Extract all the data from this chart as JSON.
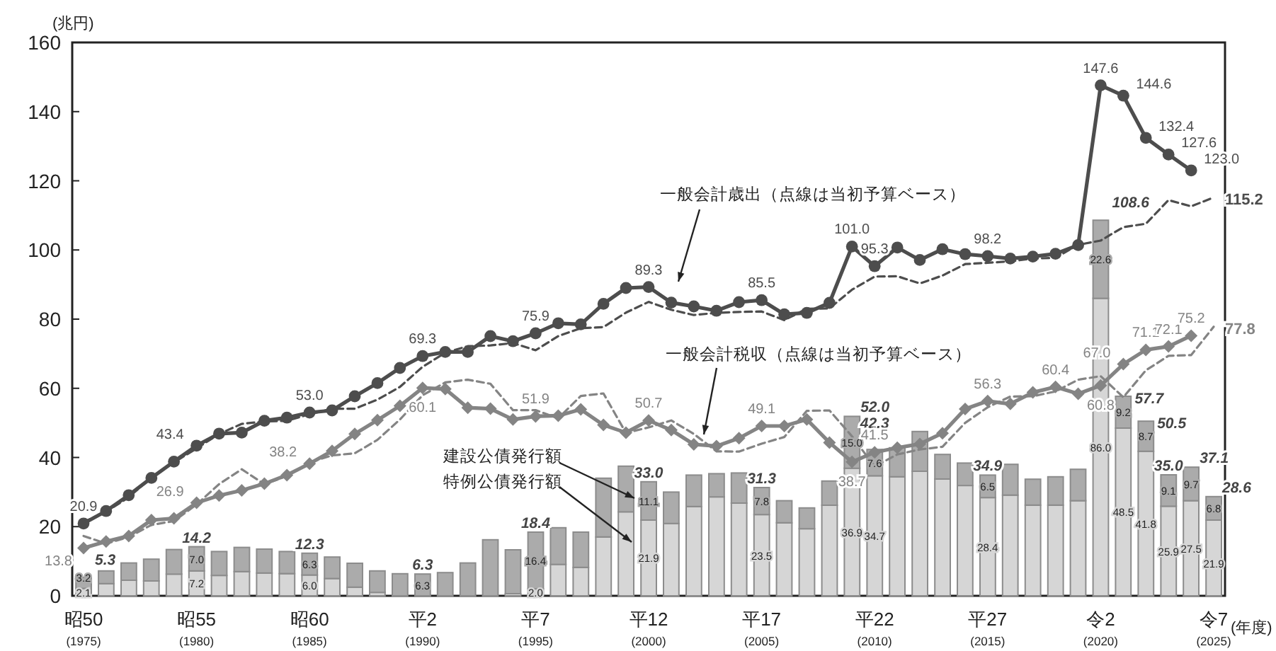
{
  "chart_data": {
    "type": "bar",
    "stacked": true,
    "ylabel": "(兆円)",
    "xlabel": "(年度)",
    "ylim": [
      0,
      160
    ],
    "yticks": [
      0,
      20,
      40,
      60,
      80,
      100,
      120,
      140,
      160
    ],
    "categories": [
      "昭50\n(1975)",
      null,
      null,
      null,
      null,
      "昭55\n(1980)",
      null,
      null,
      null,
      null,
      "昭60\n(1985)",
      null,
      null,
      null,
      null,
      "平2\n(1990)",
      null,
      null,
      null,
      null,
      "平7\n(1995)",
      null,
      null,
      null,
      null,
      "平12\n(2000)",
      null,
      null,
      null,
      null,
      "平17\n(2005)",
      null,
      null,
      null,
      null,
      "平22\n(2010)",
      null,
      null,
      null,
      null,
      "平27\n(2015)",
      null,
      null,
      null,
      null,
      "令2\n(2020)",
      null,
      null,
      null,
      null,
      "令7\n(2025)"
    ],
    "totals": [
      "5.3",
      null,
      null,
      null,
      null,
      "14.2",
      null,
      null,
      null,
      null,
      "12.3",
      null,
      null,
      null,
      null,
      "6.3",
      null,
      null,
      null,
      null,
      "18.4",
      null,
      null,
      null,
      null,
      "33.0",
      null,
      null,
      null,
      null,
      "31.3",
      null,
      null,
      null,
      "52.0",
      "42.3",
      null,
      null,
      null,
      null,
      "34.9",
      null,
      null,
      null,
      null,
      "108.6",
      "57.7",
      "50.5",
      "35.0",
      "37.1",
      "28.6"
    ],
    "series": [
      {
        "name": "特例公債発行額",
        "color": "#d6d6d6",
        "values": [
          2.1,
          3.5,
          4.5,
          4.3,
          6.3,
          7.2,
          5.9,
          7.0,
          6.6,
          6.4,
          6.0,
          5.0,
          2.5,
          1.0,
          null,
          0,
          0,
          0,
          0,
          0.6,
          2.0,
          9.1,
          8.2,
          17.0,
          24.3,
          21.9,
          20.9,
          25.8,
          28.6,
          26.8,
          23.5,
          21.1,
          19.4,
          26.2,
          36.9,
          34.7,
          34.4,
          36.0,
          33.8,
          31.9,
          28.4,
          29.1,
          26.2,
          26.2,
          27.5,
          86.0,
          48.5,
          41.8,
          25.9,
          27.5,
          21.9
        ],
        "value_labels": [
          "2.1",
          null,
          null,
          null,
          null,
          "7.2",
          null,
          null,
          null,
          null,
          "6.0",
          null,
          null,
          null,
          null,
          null,
          null,
          null,
          null,
          null,
          "2.0",
          null,
          null,
          null,
          null,
          "21.9",
          null,
          null,
          null,
          null,
          "23.5",
          null,
          null,
          null,
          "36.9",
          "34.7",
          null,
          null,
          null,
          null,
          "28.4",
          null,
          null,
          null,
          null,
          "86.0",
          "48.5",
          "41.8",
          "25.9",
          "27.5",
          "21.9"
        ]
      },
      {
        "name": "建設公債発行額",
        "color": "#ababab",
        "values": [
          3.2,
          3.7,
          5.0,
          6.3,
          7.1,
          7.0,
          6.9,
          7.0,
          6.9,
          6.4,
          6.3,
          6.2,
          6.9,
          6.2,
          6.4,
          6.3,
          6.7,
          9.5,
          16.2,
          12.7,
          16.4,
          10.6,
          10.2,
          17.0,
          13.2,
          11.1,
          9.1,
          9.1,
          6.7,
          8.7,
          7.8,
          6.4,
          6.0,
          7.0,
          15.0,
          7.6,
          8.4,
          11.5,
          7.1,
          6.5,
          6.5,
          8.9,
          7.5,
          8.2,
          9.1,
          22.6,
          9.2,
          8.7,
          9.1,
          9.7,
          6.8
        ],
        "value_labels": [
          "3.2",
          null,
          null,
          null,
          null,
          "7.0",
          null,
          null,
          null,
          null,
          "6.3",
          null,
          null,
          null,
          null,
          "6.3",
          null,
          null,
          null,
          null,
          "16.4",
          null,
          null,
          null,
          null,
          "11.1",
          null,
          null,
          null,
          null,
          "7.8",
          null,
          null,
          null,
          "15.0",
          "7.6",
          null,
          null,
          null,
          null,
          "6.5",
          null,
          null,
          null,
          null,
          "22.6",
          "9.2",
          "8.7",
          "9.1",
          "9.7",
          "6.8"
        ]
      },
      {
        "name": "一般会計歳出（点線は当初予算ベース）",
        "type": "line",
        "color": "#4d4d4d",
        "marker": "circle",
        "line_style": "solid",
        "values": [
          20.9,
          24.5,
          29.1,
          34.1,
          38.8,
          43.4,
          46.9,
          47.2,
          50.6,
          51.5,
          53.0,
          53.6,
          57.7,
          61.5,
          65.9,
          69.3,
          70.5,
          70.5,
          75.1,
          73.6,
          75.9,
          78.8,
          78.5,
          84.4,
          89.0,
          89.3,
          84.8,
          83.7,
          82.4,
          84.9,
          85.5,
          81.4,
          81.8,
          84.7,
          101.0,
          95.3,
          100.7,
          97.1,
          100.2,
          98.8,
          98.2,
          97.5,
          98.1,
          98.9,
          101.4,
          147.6,
          144.6,
          132.4,
          127.6,
          123.0,
          null
        ],
        "value_labels": [
          "20.9",
          null,
          null,
          null,
          null,
          "43.4",
          null,
          null,
          null,
          null,
          "53.0",
          null,
          null,
          null,
          null,
          "69.3",
          null,
          null,
          null,
          null,
          "75.9",
          null,
          null,
          null,
          null,
          "89.3",
          null,
          null,
          null,
          null,
          "85.5",
          null,
          null,
          null,
          "101.0",
          "95.3",
          null,
          null,
          null,
          null,
          "98.2",
          null,
          null,
          null,
          null,
          "147.6",
          "144.6",
          "132.4",
          "127.6",
          "123.0",
          null
        ]
      },
      {
        "type": "line",
        "color": "#4d4d4d",
        "marker": "none",
        "line_style": "dashed",
        "values": [
          21.3,
          24.3,
          28.5,
          34.3,
          38.6,
          42.6,
          46.8,
          49.7,
          50.4,
          50.6,
          52.5,
          54.1,
          54.1,
          56.7,
          60.4,
          66.2,
          70.3,
          72.2,
          72.4,
          73.1,
          71.0,
          75.1,
          77.4,
          77.7,
          81.9,
          85.0,
          82.7,
          81.2,
          81.8,
          82.1,
          82.2,
          79.7,
          83.0,
          83.1,
          88.5,
          92.3,
          92.4,
          90.3,
          92.6,
          95.9,
          96.3,
          96.7,
          97.5,
          97.7,
          101.5,
          102.7,
          106.6,
          107.6,
          114.4,
          112.6,
          115.2
        ],
        "value_labels": [
          null,
          null,
          null,
          null,
          null,
          null,
          null,
          null,
          null,
          null,
          null,
          null,
          null,
          null,
          null,
          null,
          null,
          null,
          null,
          null,
          null,
          null,
          null,
          null,
          null,
          null,
          null,
          null,
          null,
          null,
          null,
          null,
          null,
          null,
          null,
          null,
          null,
          null,
          null,
          null,
          null,
          null,
          null,
          null,
          null,
          null,
          null,
          null,
          null,
          null,
          "115.2"
        ]
      },
      {
        "name": "一般会計税収（点線は当初予算ベース）",
        "type": "line",
        "color": "#848484",
        "marker": "diamond",
        "line_style": "solid",
        "values": [
          13.8,
          15.7,
          17.3,
          21.9,
          22.4,
          26.9,
          29.0,
          30.5,
          32.4,
          34.9,
          38.2,
          41.9,
          46.8,
          50.8,
          54.9,
          60.1,
          59.8,
          54.4,
          54.1,
          51.0,
          51.9,
          52.1,
          53.9,
          49.4,
          47.2,
          50.7,
          47.9,
          43.8,
          43.3,
          45.6,
          49.1,
          49.1,
          51.0,
          44.3,
          38.7,
          41.5,
          42.8,
          43.9,
          47.0,
          54.0,
          56.3,
          55.5,
          58.8,
          60.4,
          58.4,
          60.8,
          67.0,
          71.1,
          72.1,
          75.2,
          null
        ],
        "value_labels": [
          "13.8",
          null,
          null,
          null,
          null,
          "26.9",
          null,
          null,
          null,
          null,
          "38.2",
          null,
          null,
          null,
          null,
          "60.1",
          null,
          null,
          null,
          null,
          "51.9",
          null,
          null,
          null,
          null,
          "50.7",
          null,
          null,
          null,
          null,
          "49.1",
          null,
          null,
          null,
          "38.7",
          "41.5",
          null,
          null,
          null,
          null,
          "56.3",
          null,
          null,
          "60.4",
          null,
          "60.8",
          "67.0",
          "71.1",
          "72.1",
          "75.2",
          null
        ]
      },
      {
        "type": "line",
        "color": "#848484",
        "marker": "none",
        "line_style": "dashed",
        "values": [
          17.3,
          15.1,
          17.0,
          20.5,
          21.6,
          26.4,
          32.3,
          36.6,
          32.3,
          34.6,
          38.6,
          40.6,
          41.2,
          45.1,
          51.0,
          58.0,
          61.7,
          62.5,
          61.3,
          53.7,
          53.7,
          51.3,
          57.8,
          58.5,
          47.1,
          48.7,
          50.7,
          46.8,
          41.8,
          41.7,
          44.0,
          45.9,
          53.5,
          53.6,
          46.1,
          37.4,
          40.9,
          42.3,
          43.1,
          50.0,
          54.5,
          57.6,
          57.7,
          59.1,
          62.5,
          63.5,
          57.4,
          65.2,
          69.4,
          69.6,
          77.8
        ],
        "value_labels": [
          null,
          null,
          null,
          null,
          null,
          null,
          null,
          null,
          null,
          null,
          null,
          null,
          null,
          null,
          null,
          null,
          null,
          null,
          null,
          null,
          null,
          null,
          null,
          null,
          null,
          null,
          null,
          null,
          null,
          null,
          null,
          null,
          null,
          null,
          null,
          null,
          null,
          null,
          null,
          null,
          null,
          null,
          null,
          null,
          null,
          null,
          null,
          null,
          null,
          null,
          "77.8"
        ]
      }
    ]
  }
}
